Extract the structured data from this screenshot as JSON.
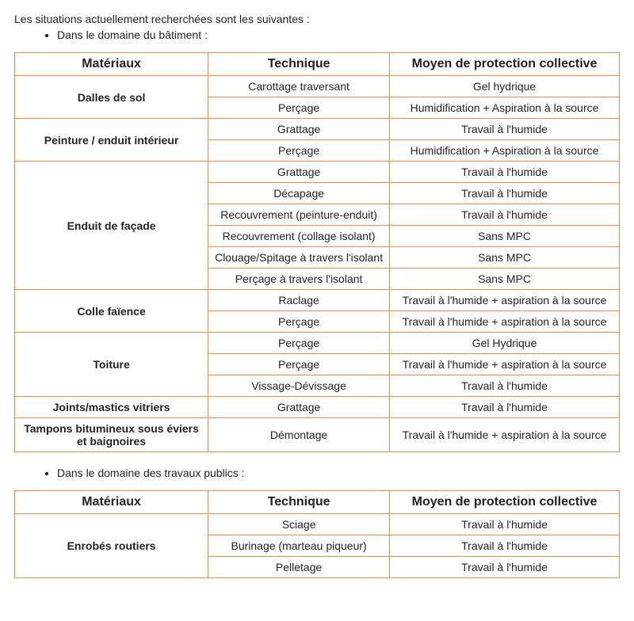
{
  "intro": "Les situations actuellement recherchées sont les suivantes :",
  "bullet1": "Dans le domaine du bâtiment :",
  "bullet2": "Dans le domaine des travaux publics :",
  "headers": {
    "materiaux": "Matériaux",
    "technique": "Technique",
    "mpc": "Moyen de protection collective"
  },
  "table1": {
    "groups": [
      {
        "mat": "Dalles de sol",
        "rows": [
          {
            "tech": "Carottage traversant",
            "mpc": "Gel hydrique"
          },
          {
            "tech": "Perçage",
            "mpc": "Humidification + Aspiration à la source"
          }
        ]
      },
      {
        "mat": "Peinture / enduit intérieur",
        "rows": [
          {
            "tech": "Grattage",
            "mpc": "Travail à l'humide"
          },
          {
            "tech": "Perçage",
            "mpc": "Humidification + Aspiration à la source"
          }
        ]
      },
      {
        "mat": "Enduit de façade",
        "rows": [
          {
            "tech": "Grattage",
            "mpc": "Travail à l'humide"
          },
          {
            "tech": "Décapage",
            "mpc": "Travail à l'humide"
          },
          {
            "tech": "Recouvrement (peinture-enduit)",
            "mpc": "Travail à l'humide"
          },
          {
            "tech": "Recouvrement (collage isolant)",
            "mpc": "Sans MPC"
          },
          {
            "tech": "Clouage/Spitage à travers l'isolant",
            "mpc": "Sans MPC"
          },
          {
            "tech": "Perçage à travers l'isolant",
            "mpc": "Sans MPC"
          }
        ]
      },
      {
        "mat": "Colle faïence",
        "rows": [
          {
            "tech": "Raclage",
            "mpc": "Travail à l'humide + aspiration à la source"
          },
          {
            "tech": "Perçage",
            "mpc": "Travail à l'humide + aspiration à la source"
          }
        ]
      },
      {
        "mat": "Toiture",
        "rows": [
          {
            "tech": "Perçage",
            "mpc": "Gel Hydrique"
          },
          {
            "tech": "Perçage",
            "mpc": "Travail à l'humide + aspiration à la source"
          },
          {
            "tech": "Vissage-Dévissage",
            "mpc": "Travail à l'humide"
          }
        ]
      },
      {
        "mat": "Joints/mastics vitriers",
        "rows": [
          {
            "tech": "Grattage",
            "mpc": "Travail à l'humide"
          }
        ]
      },
      {
        "mat": "Tampons bitumineux sous éviers et baignoires",
        "rows": [
          {
            "tech": "Démontage",
            "mpc": "Travail à l'humide + aspiration à la source"
          }
        ]
      }
    ]
  },
  "table2": {
    "groups": [
      {
        "mat": "Enrobés routiers",
        "rows": [
          {
            "tech": "Sciage",
            "mpc": "Travail à l'humide"
          },
          {
            "tech": "Burinage (marteau piqueur)",
            "mpc": "Travail à l'humide"
          },
          {
            "tech": "Pelletage",
            "mpc": "Travail à l'humide"
          }
        ]
      }
    ]
  },
  "colors": {
    "border": "#e88c4a",
    "text": "#222222",
    "background": "#ffffff"
  }
}
